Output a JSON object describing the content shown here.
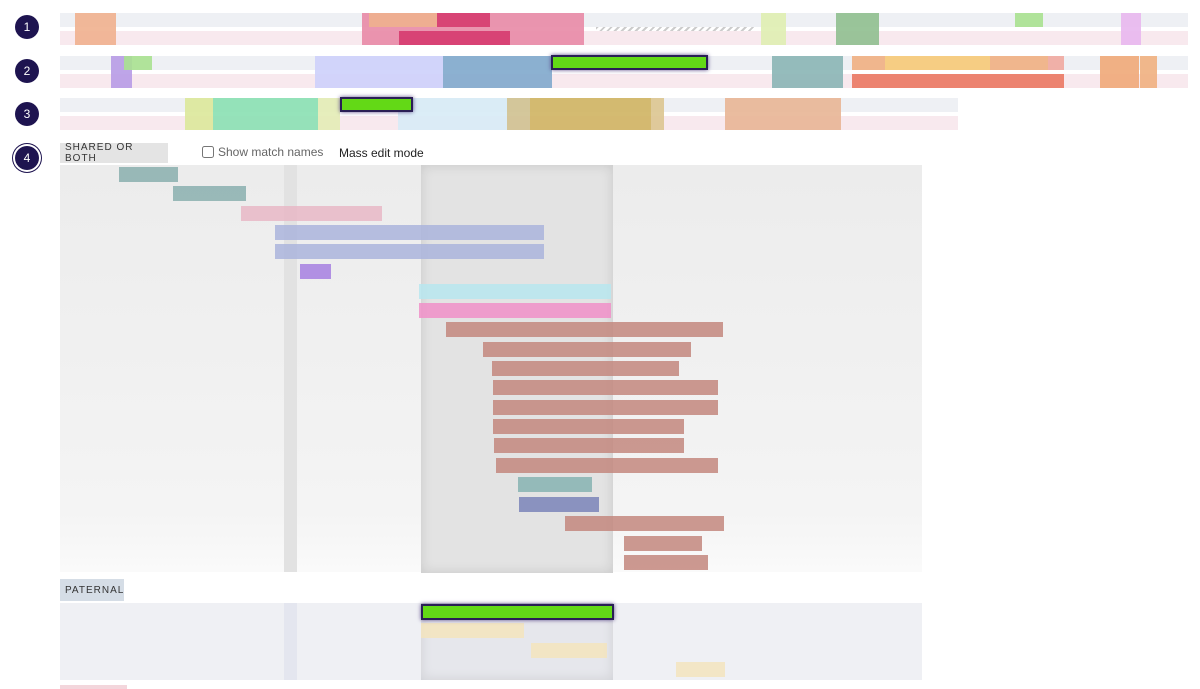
{
  "chromosomes": [
    {
      "number": "1"
    },
    {
      "number": "2"
    },
    {
      "number": "3"
    },
    {
      "number": "4"
    }
  ],
  "detail": {
    "shared_label": "SHARED OR BOTH",
    "show_match_names_label": "Show match names",
    "show_match_names_checked": false,
    "mass_edit_label": "Mass edit mode",
    "paternal_label": "PATERNAL"
  },
  "colors": {
    "selected_marker": "#63d916",
    "number_badge": "#1e1450",
    "paternal_bg": "#eef0f4",
    "maternal_bg": "#f8e9ee"
  }
}
